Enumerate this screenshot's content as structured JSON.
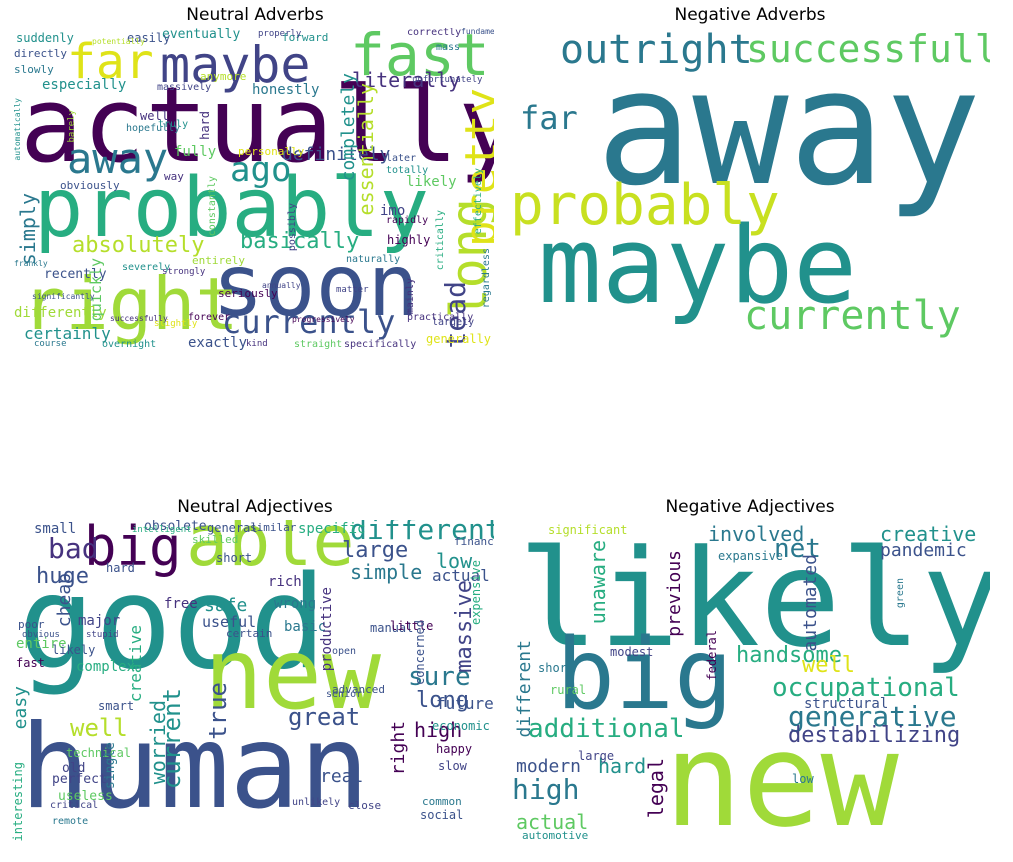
{
  "palette": {
    "dark_purple": "#440154",
    "indigo": "#3b528b",
    "teal": "#21918c",
    "green": "#5ec962",
    "yellow_green": "#b5de2b",
    "yellow": "#dfe318",
    "blue_purple": "#414487",
    "sea": "#2a788e",
    "mint": "#27ad81"
  },
  "panels": [
    {
      "title": "Neutral Adverbs",
      "words": [
        {
          "t": "actually",
          "c": "#440154"
        },
        {
          "t": "probably",
          "c": "#27ad81"
        },
        {
          "t": "soon",
          "c": "#3b528b"
        },
        {
          "t": "right",
          "c": "#a0da39"
        },
        {
          "t": "maybe",
          "c": "#414487"
        },
        {
          "t": "fast",
          "c": "#5ec962"
        },
        {
          "t": "far",
          "c": "#dfe318"
        },
        {
          "t": "away",
          "c": "#2a788e"
        },
        {
          "t": "ago",
          "c": "#21918c"
        },
        {
          "t": "long",
          "c": "#b5de2b"
        },
        {
          "t": "pretty",
          "c": "#dfe318"
        },
        {
          "t": "currently",
          "c": "#3b528b"
        },
        {
          "t": "absolutely",
          "c": "#b5de2b"
        },
        {
          "t": "basically",
          "c": "#27ad81"
        },
        {
          "t": "definitely",
          "c": "#3b528b"
        },
        {
          "t": "literally",
          "c": "#46327e"
        },
        {
          "t": "simply",
          "c": "#2a788e"
        },
        {
          "t": "certainly",
          "c": "#21918c"
        },
        {
          "t": "exactly",
          "c": "#3b528b"
        },
        {
          "t": "instead",
          "c": "#414487"
        },
        {
          "t": "completely",
          "c": "#21918c"
        },
        {
          "t": "essentially",
          "c": "#b5de2b"
        },
        {
          "t": "honestly",
          "c": "#2a788e"
        },
        {
          "t": "especially",
          "c": "#21918c"
        },
        {
          "t": "eventually",
          "c": "#21918c"
        },
        {
          "t": "easily",
          "c": "#3b528b"
        },
        {
          "t": "forward",
          "c": "#21918c"
        },
        {
          "t": "suddenly",
          "c": "#21918c"
        },
        {
          "t": "directly",
          "c": "#3b528b"
        },
        {
          "t": "slowly",
          "c": "#2a788e"
        },
        {
          "t": "differently",
          "c": "#a0da39"
        },
        {
          "t": "recently",
          "c": "#3b528b"
        },
        {
          "t": "quickly",
          "c": "#5ec962"
        },
        {
          "t": "obviously",
          "c": "#3b528b"
        },
        {
          "t": "fully",
          "c": "#5ec962"
        },
        {
          "t": "well",
          "c": "#46327e"
        },
        {
          "t": "hopefully",
          "c": "#2a788e"
        },
        {
          "t": "truly",
          "c": "#21918c"
        },
        {
          "t": "hard",
          "c": "#46327e"
        },
        {
          "t": "personally",
          "c": "#dfe318"
        },
        {
          "t": "likely",
          "c": "#5ec962"
        },
        {
          "t": "totally",
          "c": "#21918c"
        },
        {
          "t": "later",
          "c": "#3b528b"
        },
        {
          "t": "imo",
          "c": "#414487"
        },
        {
          "t": "highly",
          "c": "#440154"
        },
        {
          "t": "entirely",
          "c": "#a0da39"
        },
        {
          "t": "severely",
          "c": "#21918c"
        },
        {
          "t": "seriously",
          "c": "#440154"
        },
        {
          "t": "generally",
          "c": "#dfe318"
        },
        {
          "t": "specifically",
          "c": "#46327e"
        },
        {
          "t": "straight",
          "c": "#5ec962"
        },
        {
          "t": "largely",
          "c": "#414487"
        },
        {
          "t": "practically",
          "c": "#46327e"
        },
        {
          "t": "regardless",
          "c": "#2a788e"
        },
        {
          "t": "mainly",
          "c": "#46327e"
        },
        {
          "t": "forever",
          "c": "#440154"
        },
        {
          "t": "overnight",
          "c": "#21918c"
        },
        {
          "t": "kind",
          "c": "#46327e"
        },
        {
          "t": "course",
          "c": "#2a788e"
        },
        {
          "t": "way",
          "c": "#46327e"
        },
        {
          "t": "anymore",
          "c": "#b5de2b"
        },
        {
          "t": "massively",
          "c": "#414487"
        },
        {
          "t": "correctly",
          "c": "#46327e"
        },
        {
          "t": "mass",
          "c": "#2a788e"
        },
        {
          "t": "unfortunately",
          "c": "#414487"
        },
        {
          "t": "rapidly",
          "c": "#440154"
        },
        {
          "t": "naturally",
          "c": "#2a788e"
        },
        {
          "t": "critically",
          "c": "#27ad81"
        },
        {
          "t": "effectively",
          "c": "#27ad81"
        },
        {
          "t": "possibly",
          "c": "#414487"
        },
        {
          "t": "constantly",
          "c": "#5ec962"
        },
        {
          "t": "slightly",
          "c": "#dfe318"
        },
        {
          "t": "significantly",
          "c": "#3b528b"
        },
        {
          "t": "matter",
          "c": "#414487"
        },
        {
          "t": "strongly",
          "c": "#46327e"
        },
        {
          "t": "barely",
          "c": "#a0da39"
        },
        {
          "t": "potentially",
          "c": "#b5de2b"
        },
        {
          "t": "properly",
          "c": "#414487"
        },
        {
          "t": "fundamentally",
          "c": "#3b528b"
        },
        {
          "t": "automatically",
          "c": "#21918c"
        },
        {
          "t": "frankly",
          "c": "#2a788e"
        },
        {
          "t": "annually",
          "c": "#414487"
        },
        {
          "t": "progressively",
          "c": "#440154"
        },
        {
          "t": "successfully",
          "c": "#46327e"
        }
      ]
    },
    {
      "title": "Negative Adverbs",
      "words": [
        {
          "t": "away",
          "c": "#2a788e"
        },
        {
          "t": "maybe",
          "c": "#21918c"
        },
        {
          "t": "probably",
          "c": "#c8e020"
        },
        {
          "t": "outright",
          "c": "#2a788e"
        },
        {
          "t": "successfully",
          "c": "#5ec962"
        },
        {
          "t": "currently",
          "c": "#5ec962"
        },
        {
          "t": "far",
          "c": "#2a788e"
        }
      ]
    },
    {
      "title": "Neutral Adjectives",
      "words": [
        {
          "t": "good",
          "c": "#21918c"
        },
        {
          "t": "human",
          "c": "#3b528b"
        },
        {
          "t": "new",
          "c": "#a0da39"
        },
        {
          "t": "able",
          "c": "#a0da39"
        },
        {
          "t": "big",
          "c": "#440154"
        },
        {
          "t": "different",
          "c": "#21918c"
        },
        {
          "t": "bad",
          "c": "#46327e"
        },
        {
          "t": "huge",
          "c": "#3b528b"
        },
        {
          "t": "large",
          "c": "#3b528b"
        },
        {
          "t": "simple",
          "c": "#2a788e"
        },
        {
          "t": "low",
          "c": "#21918c"
        },
        {
          "t": "actual",
          "c": "#3b528b"
        },
        {
          "t": "sure",
          "c": "#2a788e"
        },
        {
          "t": "long",
          "c": "#3b528b"
        },
        {
          "t": "massive",
          "c": "#414487"
        },
        {
          "t": "high",
          "c": "#440154"
        },
        {
          "t": "future",
          "c": "#3b528b"
        },
        {
          "t": "great",
          "c": "#3b528b"
        },
        {
          "t": "true",
          "c": "#3b528b"
        },
        {
          "t": "worried",
          "c": "#21918c"
        },
        {
          "t": "current",
          "c": "#21918c"
        },
        {
          "t": "creative",
          "c": "#27ad81"
        },
        {
          "t": "cheap",
          "c": "#3b528b"
        },
        {
          "t": "easy",
          "c": "#21918c"
        },
        {
          "t": "well",
          "c": "#b5de2b"
        },
        {
          "t": "real",
          "c": "#3b528b"
        },
        {
          "t": "right",
          "c": "#440154"
        },
        {
          "t": "safe",
          "c": "#21918c"
        },
        {
          "t": "useful",
          "c": "#3b528b"
        },
        {
          "t": "free",
          "c": "#46327e"
        },
        {
          "t": "rich",
          "c": "#46327e"
        },
        {
          "t": "wrong",
          "c": "#2a788e"
        },
        {
          "t": "basic",
          "c": "#2a788e"
        },
        {
          "t": "productive",
          "c": "#46327e"
        },
        {
          "t": "small",
          "c": "#3b528b"
        },
        {
          "t": "specific",
          "c": "#27ad81"
        },
        {
          "t": "general",
          "c": "#3b528b"
        },
        {
          "t": "similar",
          "c": "#3b528b"
        },
        {
          "t": "short",
          "c": "#3b528b"
        },
        {
          "t": "hard",
          "c": "#3b528b"
        },
        {
          "t": "major",
          "c": "#414487"
        },
        {
          "t": "entire",
          "c": "#5ec962"
        },
        {
          "t": "likely",
          "c": "#3b528b"
        },
        {
          "t": "fast",
          "c": "#440154"
        },
        {
          "t": "complex",
          "c": "#27ad81"
        },
        {
          "t": "smart",
          "c": "#3b528b"
        },
        {
          "t": "technical",
          "c": "#5ec962"
        },
        {
          "t": "old",
          "c": "#414487"
        },
        {
          "t": "perfect",
          "c": "#414487"
        },
        {
          "t": "interesting",
          "c": "#27ad81"
        },
        {
          "t": "useless",
          "c": "#5ec962"
        },
        {
          "t": "certain",
          "c": "#3b528b"
        },
        {
          "t": "manual",
          "c": "#3b528b"
        },
        {
          "t": "little",
          "c": "#440154"
        },
        {
          "t": "concerned",
          "c": "#3b528b"
        },
        {
          "t": "expensive",
          "c": "#27ad81"
        },
        {
          "t": "economic",
          "c": "#21918c"
        },
        {
          "t": "slow",
          "c": "#414487"
        },
        {
          "t": "happy",
          "c": "#440154"
        },
        {
          "t": "social",
          "c": "#3b528b"
        },
        {
          "t": "common",
          "c": "#2a788e"
        },
        {
          "t": "close",
          "c": "#414487"
        },
        {
          "t": "unlikely",
          "c": "#414487"
        },
        {
          "t": "single",
          "c": "#2a788e"
        },
        {
          "t": "advanced",
          "c": "#3b528b"
        },
        {
          "t": "obsolete",
          "c": "#3b528b"
        },
        {
          "t": "skilled",
          "c": "#5ec962"
        },
        {
          "t": "financial",
          "c": "#3b528b"
        },
        {
          "t": "poor",
          "c": "#3b528b"
        },
        {
          "t": "obvious",
          "c": "#3b528b"
        },
        {
          "t": "stupid",
          "c": "#414487"
        },
        {
          "t": "remote",
          "c": "#2a788e"
        },
        {
          "t": "critical",
          "c": "#414487"
        },
        {
          "t": "open",
          "c": "#3b528b"
        },
        {
          "t": "senior",
          "c": "#3b528b"
        },
        {
          "t": "intelligent",
          "c": "#27ad81"
        }
      ]
    },
    {
      "title": "Negative Adjectives",
      "words": [
        {
          "t": "likely",
          "c": "#21918c"
        },
        {
          "t": "new",
          "c": "#a0da39"
        },
        {
          "t": "big",
          "c": "#2a788e"
        },
        {
          "t": "net",
          "c": "#2a788e"
        },
        {
          "t": "occupational",
          "c": "#27ad81"
        },
        {
          "t": "generative",
          "c": "#2a788e"
        },
        {
          "t": "additional",
          "c": "#27ad81"
        },
        {
          "t": "high",
          "c": "#2a788e"
        },
        {
          "t": "modern",
          "c": "#3b528b"
        },
        {
          "t": "actual",
          "c": "#5ec962"
        },
        {
          "t": "handsome",
          "c": "#27ad81"
        },
        {
          "t": "destabilizing",
          "c": "#414487"
        },
        {
          "t": "involved",
          "c": "#2a788e"
        },
        {
          "t": "creative",
          "c": "#21918c"
        },
        {
          "t": "pandemic",
          "c": "#3b528b"
        },
        {
          "t": "automated",
          "c": "#3b528b"
        },
        {
          "t": "well",
          "c": "#dfe318"
        },
        {
          "t": "previous",
          "c": "#440154"
        },
        {
          "t": "unaware",
          "c": "#27ad81"
        },
        {
          "t": "different",
          "c": "#2a788e"
        },
        {
          "t": "legal",
          "c": "#440154"
        },
        {
          "t": "hard",
          "c": "#21918c"
        },
        {
          "t": "structural",
          "c": "#3b528b"
        },
        {
          "t": "modest",
          "c": "#414487"
        },
        {
          "t": "short",
          "c": "#2a788e"
        },
        {
          "t": "rural",
          "c": "#5ec962"
        },
        {
          "t": "large",
          "c": "#414487"
        },
        {
          "t": "low",
          "c": "#2a788e"
        },
        {
          "t": "significant",
          "c": "#b5de2b"
        },
        {
          "t": "expansive",
          "c": "#2a788e"
        },
        {
          "t": "federal",
          "c": "#440154"
        },
        {
          "t": "green",
          "c": "#2a788e"
        },
        {
          "t": "automotive",
          "c": "#21918c"
        }
      ]
    }
  ]
}
